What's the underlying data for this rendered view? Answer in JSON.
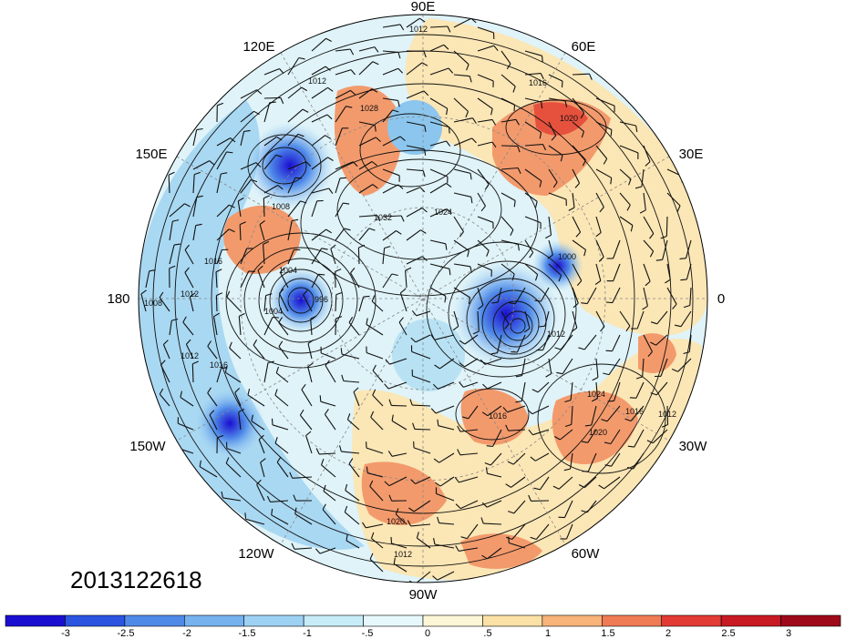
{
  "map": {
    "date_stamp": "2013122618",
    "projection": "north-polar-stereographic",
    "longitude_labels": [
      "90E",
      "60E",
      "30E",
      "0",
      "30W",
      "60W",
      "90W",
      "120W",
      "150W",
      "180",
      "150E",
      "120E"
    ],
    "contour_labels": [
      "1012",
      "1016",
      "1020",
      "1028",
      "1012",
      "1008",
      "1032",
      "1024",
      "1016",
      "1004",
      "996",
      "1004",
      "1008",
      "1012",
      "1012",
      "1016",
      "1000",
      "1012",
      "1024",
      "1016",
      "1020",
      "1012",
      "1020",
      "1012",
      "1016"
    ],
    "colorbar": {
      "tick_labels": [
        "-3",
        "-2.5",
        "-2",
        "-1.5",
        "-1",
        "-.5",
        "0",
        ".5",
        "1",
        "1.5",
        "2",
        "2.5",
        "3"
      ],
      "colors": [
        "#1a0fd0",
        "#2b54e0",
        "#4f8ae8",
        "#76b2ee",
        "#9ed2f4",
        "#c6ecf8",
        "#e6f8fb",
        "#fdf6d6",
        "#fbe1a6",
        "#f7b37a",
        "#ef7b55",
        "#e23a34",
        "#c81a22",
        "#9e0a1a"
      ]
    }
  }
}
